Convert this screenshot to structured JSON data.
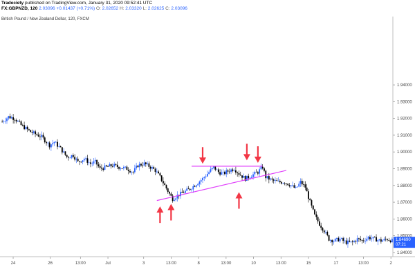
{
  "header": {
    "publisher": "Tradeciety",
    "published_text": "published on TradingView.com, January 31, 2020 09:52:41 UTC",
    "symbol": "FX:GBPNZD, 120",
    "quote_parts": [
      {
        "text": "2.03096",
        "color": "#2962ff"
      },
      {
        "text": "+0.01437 (+0.71%)",
        "color": "#2962ff"
      },
      {
        "text": "O:",
        "color": "#555555"
      },
      {
        "text": "2.02652",
        "color": "#2962ff"
      },
      {
        "text": "H:",
        "color": "#555555"
      },
      {
        "text": "2.03320",
        "color": "#2962ff"
      },
      {
        "text": "L:",
        "color": "#555555"
      },
      {
        "text": "2.02625",
        "color": "#2962ff"
      },
      {
        "text": "C:",
        "color": "#555555"
      },
      {
        "text": "2.03096",
        "color": "#2962ff"
      }
    ],
    "instrument_title": "British Pound / New Zealand Dollar, 120, FXCM"
  },
  "colors": {
    "up_candle": "#2962ff",
    "down_candle": "#000000",
    "trendline": "#e040fb",
    "arrow": "#f23645",
    "price_badge": "#2962ff"
  },
  "chart_data": {
    "type": "candlestick",
    "title": "British Pound / New Zealand Dollar, 120, FXCM",
    "ylim": [
      1.8375,
      1.9775
    ],
    "y_ticks": [
      "1.94000",
      "1.93000",
      "1.92000",
      "1.91000",
      "1.90000",
      "1.89000",
      "1.88000",
      "1.87000",
      "1.86000",
      "1.85000",
      "1.84000"
    ],
    "x_ticks": [
      "24",
      "26",
      "13:00",
      "Jul",
      "3",
      "13:00",
      "8",
      "13:00",
      "10",
      "13:00",
      "15",
      "17",
      "13:00",
      "2"
    ],
    "current_price_label": "1.84690",
    "countdown_label": "07:21",
    "price_path": [
      [
        0,
        1.918
      ],
      [
        4,
        1.921
      ],
      [
        8,
        1.92
      ],
      [
        12,
        1.916
      ],
      [
        18,
        1.912
      ],
      [
        25,
        1.909
      ],
      [
        30,
        1.904
      ],
      [
        33,
        1.906
      ],
      [
        37,
        1.902
      ],
      [
        41,
        1.897
      ],
      [
        45,
        1.898
      ],
      [
        48,
        1.894
      ],
      [
        52,
        1.896
      ],
      [
        56,
        1.893
      ],
      [
        59,
        1.894
      ],
      [
        62,
        1.89
      ],
      [
        66,
        1.891
      ],
      [
        70,
        1.892
      ],
      [
        74,
        1.891
      ],
      [
        79,
        1.89
      ],
      [
        83,
        1.888
      ],
      [
        86,
        1.892
      ],
      [
        90,
        1.893
      ],
      [
        94,
        1.891
      ],
      [
        97,
        1.889
      ],
      [
        100,
        1.885
      ],
      [
        103,
        1.88
      ],
      [
        106,
        1.875
      ],
      [
        108,
        1.872
      ],
      [
        111,
        1.874
      ],
      [
        115,
        1.876
      ],
      [
        119,
        1.878
      ],
      [
        123,
        1.881
      ],
      [
        127,
        1.884
      ],
      [
        131,
        1.888
      ],
      [
        134,
        1.891
      ],
      [
        137,
        1.888
      ],
      [
        140,
        1.887
      ],
      [
        144,
        1.889
      ],
      [
        147,
        1.89
      ],
      [
        150,
        1.887
      ],
      [
        154,
        1.884
      ],
      [
        158,
        1.886
      ],
      [
        162,
        1.888
      ],
      [
        165,
        1.891
      ],
      [
        167,
        1.885
      ],
      [
        171,
        1.883
      ],
      [
        175,
        1.882
      ],
      [
        179,
        1.882
      ],
      [
        183,
        1.88
      ],
      [
        186,
        1.878
      ],
      [
        189,
        1.882
      ],
      [
        192,
        1.879
      ],
      [
        195,
        1.87
      ],
      [
        198,
        1.862
      ],
      [
        201,
        1.857
      ],
      [
        204,
        1.853
      ],
      [
        207,
        1.848
      ],
      [
        210,
        1.847
      ],
      [
        214,
        1.848
      ],
      [
        218,
        1.846
      ],
      [
        222,
        1.846
      ],
      [
        225,
        1.848
      ],
      [
        228,
        1.847
      ],
      [
        232,
        1.849
      ],
      [
        236,
        1.848
      ],
      [
        240,
        1.847
      ],
      [
        244,
        1.848
      ],
      [
        247,
        1.847
      ]
    ],
    "resistance_line": {
      "from": [
        120,
        1.8915
      ],
      "to": [
        165,
        1.8915
      ]
    },
    "ascending_support_line": {
      "from": [
        98,
        1.871
      ],
      "to": [
        180,
        1.889
      ]
    },
    "arrows": [
      {
        "direction": "up",
        "at": [
          100,
          1.8675
        ]
      },
      {
        "direction": "up",
        "at": [
          107,
          1.869
        ]
      },
      {
        "direction": "down",
        "at": [
          127,
          1.893
        ]
      },
      {
        "direction": "down",
        "at": [
          155,
          1.895
        ]
      },
      {
        "direction": "down",
        "at": [
          162,
          1.8935
        ]
      },
      {
        "direction": "up",
        "at": [
          150,
          1.876
        ]
      }
    ]
  }
}
